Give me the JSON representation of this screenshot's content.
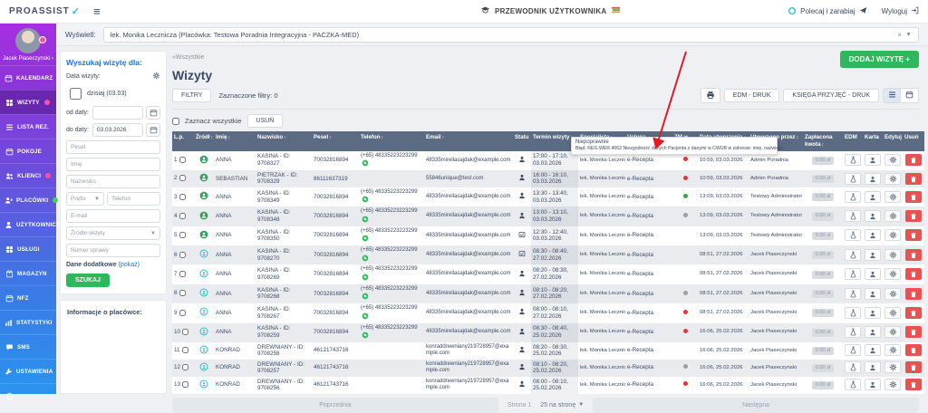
{
  "topbar": {
    "logo": "PROASSIST",
    "guide": "PRZEWODNIK UŻYTKOWNIKA",
    "refer": "Polecaj i zarabiaj",
    "logout": "Wyloguj"
  },
  "viewbar": {
    "label": "Wyświetl:",
    "value": "lek. Monika Lecznicza (Placówka: Testowa Poradnia Integracyjna - PACZKA-MED)",
    "clear": "×"
  },
  "sidebar": {
    "user": "Jacek Piaseczynski ›",
    "items": [
      {
        "label": "KALENDARZ",
        "icon": "calendar"
      },
      {
        "label": "WIZYTY",
        "icon": "grid",
        "active": true,
        "badge": "pink"
      },
      {
        "label": "LISTA REZ.",
        "icon": "list"
      },
      {
        "label": "POKOJE",
        "icon": "calendar"
      },
      {
        "label": "KLIENCI",
        "icon": "people",
        "badge": "pink"
      },
      {
        "label": "PLACÓWKI",
        "icon": "person-plus",
        "badge": "green"
      },
      {
        "label": "UŻYTKOWNICY",
        "icon": "person",
        "badge": "pink"
      },
      {
        "label": "USŁUGI",
        "icon": "grid"
      },
      {
        "label": "MAGAZYN",
        "icon": "box"
      },
      {
        "label": "NFZ",
        "icon": "calendar"
      },
      {
        "label": "STATYSTYKI",
        "icon": "chart"
      },
      {
        "label": "SMS",
        "icon": "chat"
      },
      {
        "label": "USTAWIENIA",
        "icon": "wrench"
      },
      {
        "label": "",
        "icon": "clock"
      }
    ]
  },
  "search": {
    "title": "Wyszukaj wizytę dla:",
    "date_label": "Data wizyty:",
    "today": "dzisiaj (03.03)",
    "from_label": "od daty:",
    "to_label": "do daty:",
    "to_value": "03.03.2026",
    "pesel_placeholder": "Pesel",
    "imie_placeholder": "Imię",
    "nazwisko_placeholder": "Nazwisko",
    "prefix_placeholder": "Prefix",
    "telefon_placeholder": "Telefon",
    "email_placeholder": "E-mail",
    "zrodlo_placeholder": "Źródło wizyty",
    "numer_placeholder": "Numer sprawy",
    "extra": "Dane dodatkowe",
    "extra_link": "(pokaż)",
    "szukaj": "SZUKAJ",
    "info": "Informacje o placówce:"
  },
  "main": {
    "back": "«Wszystkie",
    "title": "Wizyty",
    "add": "DODAJ WIZYTĘ +",
    "filters": "FILTRY",
    "filters_info": "Zaznaczone filtry: 0",
    "select_all": "Zaznacz wszystkie",
    "delete": "USUŃ",
    "edm_druk": "EDM - DRUK",
    "ksiega_druk": "KSIĘGA PRZYJĘĆ - DRUK",
    "tooltip": {
      "title": "Niepoprawnie",
      "body": "Błąd: REG.WER.4062 Niezgodność danych Pacjenta z danymi w CWUB w zakresie: imię, nazwisko."
    },
    "table": {
      "columns": [
        {
          "label": "L.p."
        },
        {
          "label": "Źródł",
          "sortable": true
        },
        {
          "label": "Imię",
          "sortable": true
        },
        {
          "label": "Nazwisko",
          "sortable": true
        },
        {
          "label": "Pesel",
          "sortable": true
        },
        {
          "label": "Telefon",
          "sortable": true
        },
        {
          "label": "Email",
          "sortable": true
        },
        {
          "label": "Statu"
        },
        {
          "label": "Termin wizyty",
          "sortable": true
        },
        {
          "label": "Specjalista",
          "sortable": true
        },
        {
          "label": "Usługa recepcyjna",
          "sortable": true
        },
        {
          "label": "ZM w P1",
          "sortable": true
        },
        {
          "label": "Data utworzenia",
          "sortable": true
        },
        {
          "label": "Utworzono przez",
          "sortable": true
        },
        {
          "label": "Zapłacona kwota",
          "sortable": true
        },
        {
          "label": "EDM"
        },
        {
          "label": "Karta"
        },
        {
          "label": "Edytuj"
        },
        {
          "label": "Usuń"
        }
      ],
      "rows": [
        {
          "lp": 1,
          "source": "a",
          "imie": "ANNA",
          "nazwisko": "KASINA - ID: 9708327",
          "pesel": "70032816894",
          "telefon": "(+65) 48335223223299",
          "whatsapp": true,
          "email": "48335mirellasajdak@example.com",
          "status": "person",
          "termin_time": "17:00 - 17:10,",
          "termin_date": "03.03.2026",
          "specjalista": "lek. Monika Lecznicza",
          "usluga": "e-Recepta",
          "zm": "red",
          "created": "10:59, 03.03.2026",
          "created_by": "Admin Poradnia",
          "kwota": "0.00 zł"
        },
        {
          "lp": 2,
          "source": "a",
          "imie": "SEBASTIAN",
          "nazwisko": "PIETRZAK - ID: 9708329",
          "pesel": "86111637319",
          "telefon": "",
          "whatsapp": false,
          "email": "55846unique@test.com",
          "status": "person",
          "termin_time": "16:00 - 16:10,",
          "termin_date": "03.03.2026",
          "specjalista": "lek. Monika Lecznicza",
          "usluga": "e-Recepta",
          "zm": "red",
          "created": "10:59, 03.03.2026",
          "created_by": "Admin Poradnia",
          "kwota": "0.00 zł"
        },
        {
          "lp": 3,
          "source": "a",
          "imie": "ANNA",
          "nazwisko": "KASINA - ID: 9708349",
          "pesel": "70032816894",
          "telefon": "(+65) 48335223223299",
          "whatsapp": true,
          "email": "48335mirellasajdak@example.com",
          "status": "person",
          "termin_time": "13:30 - 13:40,",
          "termin_date": "03.03.2026",
          "specjalista": "lek. Monika Lecznicza",
          "usluga": "e-Recepta",
          "zm": "green",
          "created": "13:09, 03.03.2026",
          "created_by": "Testowy Administrator",
          "kwota": "0.00 zł"
        },
        {
          "lp": 4,
          "source": "a",
          "imie": "ANNA",
          "nazwisko": "KASINA - ID: 9708348",
          "pesel": "70032816894",
          "telefon": "(+65) 48335223223299",
          "whatsapp": true,
          "email": "48335mirellasajdak@example.com",
          "status": "person",
          "termin_time": "13:00 - 13:10,",
          "termin_date": "03.03.2026",
          "specjalista": "lek. Monika Lecznicza",
          "usluga": "e-Recepta",
          "zm": "grey",
          "created": "13:09, 03.03.2026",
          "created_by": "Testowy Administrator",
          "kwota": "0.00 zł"
        },
        {
          "lp": 5,
          "source": "a",
          "imie": "ANNA",
          "nazwisko": "KASINA - ID: 9708350",
          "pesel": "70032816894",
          "telefon": "(+65) 48335223223299",
          "whatsapp": true,
          "email": "48335mirellasajdak@example.com",
          "status": "calendar",
          "termin_time": "12:30 - 12:40,",
          "termin_date": "03.03.2026",
          "specjalista": "lek. Monika Lecznicza",
          "usluga": "e-Recepta",
          "zm": "",
          "created": "13:09, 03.03.2026",
          "created_by": "Testowy Administrator",
          "kwota": "0.00 zł"
        },
        {
          "lp": 6,
          "source": "b",
          "imie": "ANNA",
          "nazwisko": "KASINA - ID: 9708270",
          "pesel": "70032816894",
          "telefon": "(+65) 48335223223299",
          "whatsapp": true,
          "email": "48335mirellasajdak@example.com",
          "status": "calendar",
          "termin_time": "08:30 - 08:40,",
          "termin_date": "27.02.2026",
          "specjalista": "lek. Monika Lecznicza",
          "usluga": "e-Recepta",
          "zm": "",
          "created": "08:51, 27.02.2026",
          "created_by": "Jacek Piaseczynski",
          "kwota": "0.00 zł"
        },
        {
          "lp": 7,
          "source": "b",
          "imie": "ANNA",
          "nazwisko": "KASINA - ID: 9708269",
          "pesel": "70032816894",
          "telefon": "(+65) 48335223223299",
          "whatsapp": true,
          "email": "48335mirellasajdak@example.com",
          "status": "person",
          "termin_time": "08:20 - 08:30,",
          "termin_date": "27.02.2026",
          "specjalista": "lek. Monika Lecznicza",
          "usluga": "e-Recepta",
          "zm": "",
          "created": "08:51, 27.02.2026",
          "created_by": "Jacek Piaseczynski",
          "kwota": "0.00 zł"
        },
        {
          "lp": 8,
          "source": "b",
          "imie": "ANNA",
          "nazwisko": "KASINA - ID: 9708268",
          "pesel": "70032816894",
          "telefon": "(+65) 48335223223299",
          "whatsapp": true,
          "email": "48335mirellasajdak@example.com",
          "status": "person",
          "termin_time": "08:10 - 08:20,",
          "termin_date": "27.02.2026",
          "specjalista": "lek. Monika Lecznicza",
          "usluga": "e-Recepta",
          "zm": "grey",
          "created": "08:51, 27.02.2026",
          "created_by": "Jacek Piaseczynski",
          "kwota": "0.00 zł"
        },
        {
          "lp": 9,
          "source": "b",
          "imie": "ANNA",
          "nazwisko": "KASINA - ID: 9708267",
          "pesel": "70032816894",
          "telefon": "(+65) 48335223223299",
          "whatsapp": true,
          "email": "48335mirellasajdak@example.com",
          "status": "person",
          "termin_time": "08:00 - 08:10,",
          "termin_date": "27.02.2026",
          "specjalista": "lek. Monika Lecznicza",
          "usluga": "e-Recepta",
          "zm": "red",
          "created": "08:51, 27.02.2026",
          "created_by": "Jacek Piaseczynski",
          "kwota": "0.00 zł"
        },
        {
          "lp": 10,
          "source": "b",
          "imie": "ANNA",
          "nazwisko": "KASINA - ID: 9708259",
          "pesel": "70032816894",
          "telefon": "(+65) 48335223223299",
          "whatsapp": true,
          "email": "48335mirellasajdak@example.com",
          "status": "person",
          "termin_time": "08:30 - 08:40,",
          "termin_date": "25.02.2026",
          "specjalista": "lek. Monika Lecznicza",
          "usluga": "e-Recepta",
          "zm": "red",
          "created": "16:06, 25.02.2026",
          "created_by": "Jacek Piaseczynski",
          "kwota": "0.00 zł"
        },
        {
          "lp": 11,
          "source": "b",
          "imie": "KONRAD",
          "nazwisko": "DREWNIANY - ID: 9708258",
          "pesel": "46121743716",
          "telefon": "",
          "whatsapp": false,
          "email": "konraddrewniany219728957@example.com",
          "status": "person",
          "termin_time": "08:20 - 08:30,",
          "termin_date": "25.02.2026",
          "specjalista": "lek. Monika Lecznicza",
          "usluga": "e-Recepta",
          "zm": "",
          "created": "16:06, 25.02.2026",
          "created_by": "Jacek Piaseczynski",
          "kwota": "0.00 zł"
        },
        {
          "lp": 12,
          "source": "b",
          "imie": "KONRAD",
          "nazwisko": "DREWNIANY - ID: 9708257",
          "pesel": "46121743716",
          "telefon": "",
          "whatsapp": false,
          "email": "konraddrewniany219728957@example.com",
          "status": "person",
          "termin_time": "08:10 - 08:20,",
          "termin_date": "25.02.2026",
          "specjalista": "lek. Monika Lecznicza",
          "usluga": "e-Recepta",
          "zm": "grey",
          "created": "16:06, 25.02.2026",
          "created_by": "Jacek Piaseczynski",
          "kwota": "0.00 zł"
        },
        {
          "lp": 13,
          "source": "b",
          "imie": "KONRAD",
          "nazwisko": "DREWNIANY - ID: 9708256",
          "pesel": "46121743716",
          "telefon": "",
          "whatsapp": false,
          "email": "konraddrewniany219728957@example.com",
          "status": "person",
          "termin_time": "08:00 - 08:10,",
          "termin_date": "25.02.2026",
          "specjalista": "lek. Monika Lecznicza",
          "usluga": "e-Recepta",
          "zm": "red",
          "created": "16:06, 25.02.2026",
          "created_by": "Jacek Piaseczynski",
          "kwota": "0.00 zł"
        }
      ]
    },
    "pagination": {
      "prev": "Poprzednia",
      "page": "Strona 1",
      "per_page": "25 na stronę",
      "next": "Następna"
    }
  },
  "colors": {
    "accent_green": "#2eb85c",
    "danger_red": "#e55353",
    "table_header": "#5b6b84",
    "badge_pink": "#ff4fa3",
    "badge_green": "#3fd94f",
    "whatsapp_green": "#2fbf5a",
    "link_blue": "#1a73e8"
  }
}
